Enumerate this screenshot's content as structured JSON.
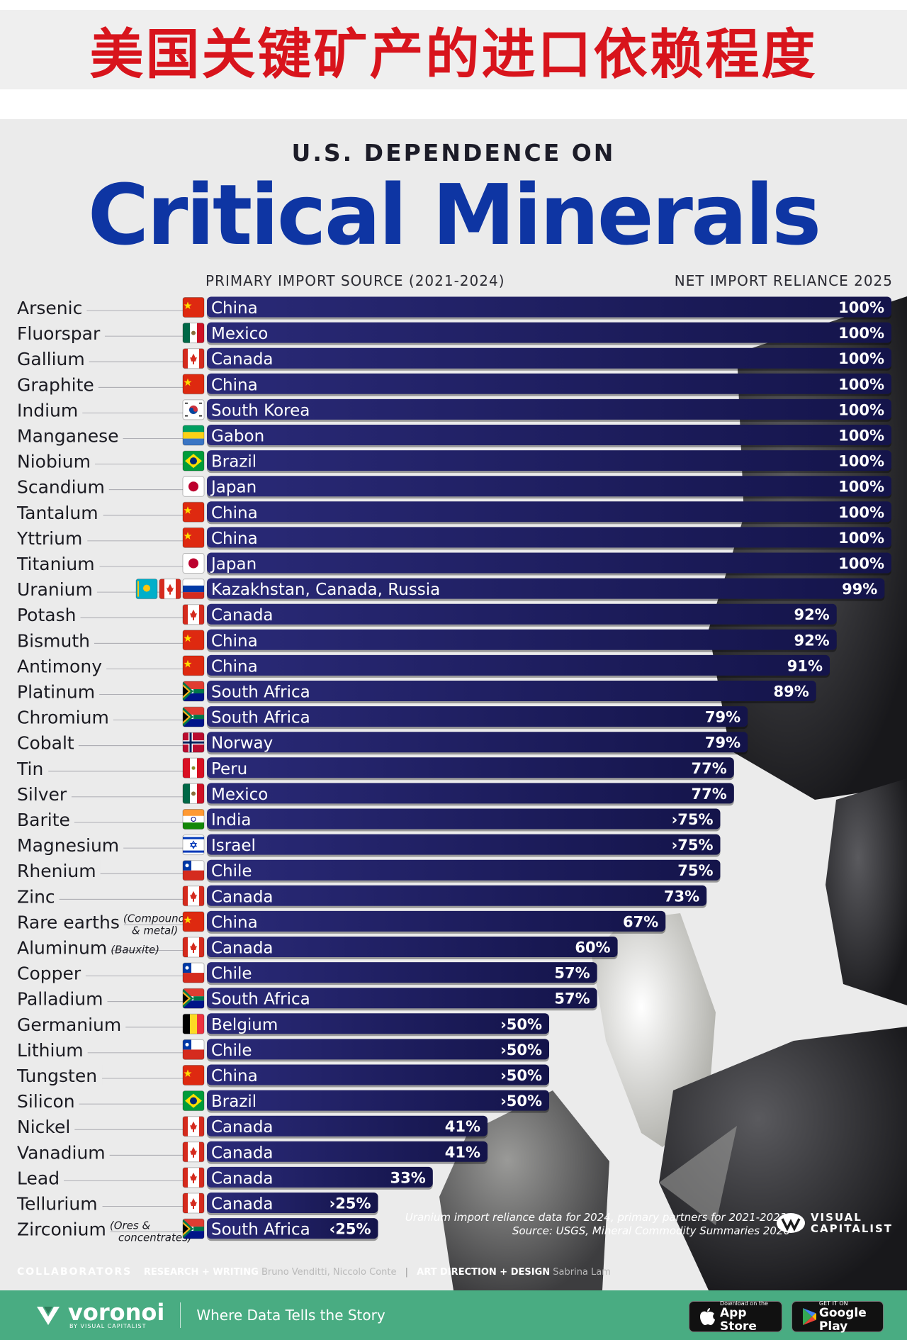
{
  "banner": {
    "title": "美国关键矿产的进口依赖程度"
  },
  "header": {
    "subtitle": "U.S. DEPENDENCE ON",
    "title": "Critical Minerals",
    "source_header": "PRIMARY IMPORT SOURCE (2021-2024)",
    "reliance_header": "NET IMPORT RELIANCE 2025"
  },
  "chart_data": {
    "type": "bar",
    "orientation": "horizontal",
    "title": "U.S. Dependence on Critical Minerals",
    "xlabel": "Net import reliance 2025 (%)",
    "xlim": [
      0,
      100
    ],
    "rows": [
      {
        "mineral": "Arsenic",
        "source": "China",
        "flags": [
          "CN"
        ],
        "value": 100,
        "label": "100%"
      },
      {
        "mineral": "Fluorspar",
        "source": "Mexico",
        "flags": [
          "MX"
        ],
        "value": 100,
        "label": "100%"
      },
      {
        "mineral": "Gallium",
        "source": "Canada",
        "flags": [
          "CA"
        ],
        "value": 100,
        "label": "100%"
      },
      {
        "mineral": "Graphite",
        "source": "China",
        "flags": [
          "CN"
        ],
        "value": 100,
        "label": "100%"
      },
      {
        "mineral": "Indium",
        "source": "South Korea",
        "flags": [
          "KR"
        ],
        "value": 100,
        "label": "100%"
      },
      {
        "mineral": "Manganese",
        "source": "Gabon",
        "flags": [
          "GA"
        ],
        "value": 100,
        "label": "100%"
      },
      {
        "mineral": "Niobium",
        "source": "Brazil",
        "flags": [
          "BR"
        ],
        "value": 100,
        "label": "100%"
      },
      {
        "mineral": "Scandium",
        "source": "Japan",
        "flags": [
          "JP"
        ],
        "value": 100,
        "label": "100%"
      },
      {
        "mineral": "Tantalum",
        "source": "China",
        "flags": [
          "CN"
        ],
        "value": 100,
        "label": "100%"
      },
      {
        "mineral": "Yttrium",
        "source": "China",
        "flags": [
          "CN"
        ],
        "value": 100,
        "label": "100%"
      },
      {
        "mineral": "Titanium",
        "source": "Japan",
        "flags": [
          "JP"
        ],
        "value": 100,
        "label": "100%"
      },
      {
        "mineral": "Uranium",
        "source": "Kazakhstan, Canada, Russia",
        "flags": [
          "KZ",
          "CA",
          "RU"
        ],
        "value": 99,
        "label": "99%"
      },
      {
        "mineral": "Potash",
        "source": "Canada",
        "flags": [
          "CA"
        ],
        "value": 92,
        "label": "92%"
      },
      {
        "mineral": "Bismuth",
        "source": "China",
        "flags": [
          "CN"
        ],
        "value": 92,
        "label": "92%"
      },
      {
        "mineral": "Antimony",
        "source": "China",
        "flags": [
          "CN"
        ],
        "value": 91,
        "label": "91%"
      },
      {
        "mineral": "Platinum",
        "source": "South Africa",
        "flags": [
          "ZA"
        ],
        "value": 89,
        "label": "89%"
      },
      {
        "mineral": "Chromium",
        "source": "South Africa",
        "flags": [
          "ZA"
        ],
        "value": 79,
        "label": "79%"
      },
      {
        "mineral": "Cobalt",
        "source": "Norway",
        "flags": [
          "NO"
        ],
        "value": 79,
        "label": "79%"
      },
      {
        "mineral": "Tin",
        "source": "Peru",
        "flags": [
          "PE"
        ],
        "value": 77,
        "label": "77%"
      },
      {
        "mineral": "Silver",
        "source": "Mexico",
        "flags": [
          "MX"
        ],
        "value": 77,
        "label": "77%"
      },
      {
        "mineral": "Barite",
        "source": "India",
        "flags": [
          "IN"
        ],
        "value": 75,
        "label": "›75%"
      },
      {
        "mineral": "Magnesium",
        "source": "Israel",
        "flags": [
          "IL"
        ],
        "value": 75,
        "label": "›75%"
      },
      {
        "mineral": "Rhenium",
        "source": "Chile",
        "flags": [
          "CL"
        ],
        "value": 75,
        "label": "75%"
      },
      {
        "mineral": "Zinc",
        "source": "Canada",
        "flags": [
          "CA"
        ],
        "value": 73,
        "label": "73%"
      },
      {
        "mineral": "Rare earths",
        "note": [
          "(Compounds",
          "& metal)"
        ],
        "source": "China",
        "flags": [
          "CN"
        ],
        "value": 67,
        "label": "67%"
      },
      {
        "mineral": "Aluminum",
        "note": [
          "(Bauxite)"
        ],
        "source": "Canada",
        "flags": [
          "CA"
        ],
        "value": 60,
        "label": "60%"
      },
      {
        "mineral": "Copper",
        "source": "Chile",
        "flags": [
          "CL"
        ],
        "value": 57,
        "label": "57%"
      },
      {
        "mineral": "Palladium",
        "source": "South Africa",
        "flags": [
          "ZA"
        ],
        "value": 57,
        "label": "57%"
      },
      {
        "mineral": "Germanium",
        "source": "Belgium",
        "flags": [
          "BE"
        ],
        "value": 50,
        "label": "›50%"
      },
      {
        "mineral": "Lithium",
        "source": "Chile",
        "flags": [
          "CL"
        ],
        "value": 50,
        "label": "›50%"
      },
      {
        "mineral": "Tungsten",
        "source": "China",
        "flags": [
          "CN"
        ],
        "value": 50,
        "label": "›50%"
      },
      {
        "mineral": "Silicon",
        "source": "Brazil",
        "flags": [
          "BR"
        ],
        "value": 50,
        "label": "›50%"
      },
      {
        "mineral": "Nickel",
        "source": "Canada",
        "flags": [
          "CA"
        ],
        "value": 41,
        "label": "41%"
      },
      {
        "mineral": "Vanadium",
        "source": "Canada",
        "flags": [
          "CA"
        ],
        "value": 41,
        "label": "41%"
      },
      {
        "mineral": "Lead",
        "source": "Canada",
        "flags": [
          "CA"
        ],
        "value": 33,
        "label": "33%"
      },
      {
        "mineral": "Tellurium",
        "source": "Canada",
        "flags": [
          "CA"
        ],
        "value": 25,
        "label": "›25%"
      },
      {
        "mineral": "Zirconium",
        "note": [
          "(Ores &",
          "concentrates)"
        ],
        "source": "South Africa",
        "flags": [
          "ZA"
        ],
        "value": 25,
        "label": "‹25%"
      }
    ]
  },
  "footer": {
    "note_line1": "Uranium import reliance data for 2024, primary partners for 2021-2023.",
    "note_line2": "Source: USGS, Mineral Commodity Summaries 2026",
    "logo_line1": "VISUAL",
    "logo_line2": "CAPITALIST",
    "collaborators_label": "COLLABORATORS",
    "research_label": "RESEARCH + WRITING",
    "research_names": "Bruno Venditti, Niccolo Conte",
    "design_label": "ART DIRECTION + DESIGN",
    "design_names": "Sabrina Lam"
  },
  "bottom_bar": {
    "brand": "voronoi",
    "brand_by": "BY VISUAL CAPITALIST",
    "tagline": "Where Data Tells the Story",
    "app_store_small": "Download on the",
    "app_store_big": "App Store",
    "google_small": "GET IT ON",
    "google_big": "Google Play"
  },
  "colors": {
    "bar_start": "#262673",
    "bar_end": "#0f0f42",
    "title_blue": "#0e35a3",
    "banner_red": "#d8141c",
    "brand_green": "#49ac82"
  }
}
